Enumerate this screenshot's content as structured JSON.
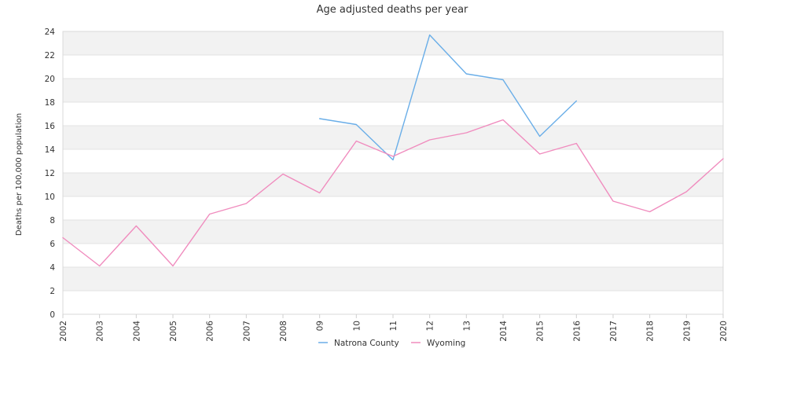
{
  "chart_data": {
    "type": "line",
    "title": "Age adjusted deaths per year",
    "xlabel": "",
    "ylabel": "Deaths per 100,000 population",
    "categories": [
      "2002",
      "2003",
      "2004",
      "2005",
      "2006",
      "2007",
      "2008",
      "09",
      "10",
      "11",
      "12",
      "13",
      "2014",
      "2015",
      "2016",
      "2017",
      "2018",
      "2019",
      "2020"
    ],
    "yticks": [
      0,
      2,
      4,
      6,
      8,
      10,
      12,
      14,
      16,
      18,
      20,
      22,
      24
    ],
    "ylim": [
      0,
      24
    ],
    "grid": true,
    "legend_position": "bottom",
    "series": [
      {
        "name": "Natrona County",
        "color": "#6aaee8",
        "values": [
          null,
          null,
          null,
          null,
          null,
          null,
          null,
          16.6,
          16.1,
          13.1,
          23.7,
          20.4,
          19.9,
          15.1,
          18.1,
          null,
          null,
          null,
          null
        ]
      },
      {
        "name": "Wyoming",
        "color": "#f08cbe",
        "values": [
          6.5,
          4.1,
          7.5,
          4.1,
          8.5,
          9.4,
          11.9,
          10.3,
          14.7,
          13.4,
          14.8,
          15.4,
          16.5,
          13.6,
          14.5,
          9.6,
          8.7,
          10.4,
          13.2
        ]
      }
    ]
  }
}
